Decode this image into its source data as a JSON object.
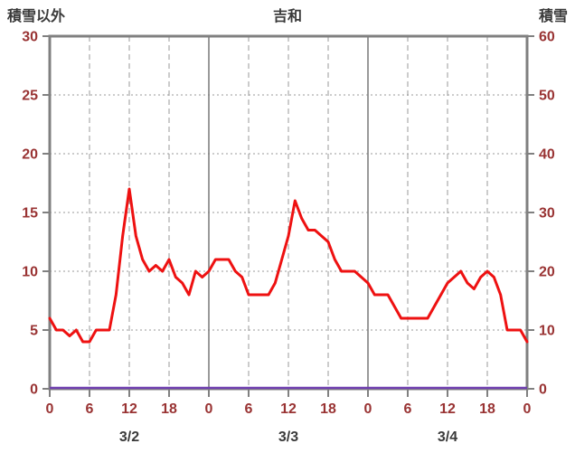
{
  "chart_data": {
    "type": "line",
    "title": "吉和",
    "left_axis": {
      "label": "積雪以外",
      "min": 0,
      "max": 30,
      "ticks": [
        0,
        5,
        10,
        15,
        20,
        25,
        30
      ]
    },
    "right_axis": {
      "label": "積雪",
      "min": 0,
      "max": 60,
      "ticks": [
        0,
        10,
        20,
        30,
        40,
        50,
        60
      ]
    },
    "x_axis": {
      "total_hours": 72,
      "hour_ticks": [
        {
          "hour": 0,
          "label": "0"
        },
        {
          "hour": 6,
          "label": "6"
        },
        {
          "hour": 12,
          "label": "12"
        },
        {
          "hour": 18,
          "label": "18"
        },
        {
          "hour": 24,
          "label": "0"
        },
        {
          "hour": 30,
          "label": "6"
        },
        {
          "hour": 36,
          "label": "12"
        },
        {
          "hour": 42,
          "label": "18"
        },
        {
          "hour": 48,
          "label": "0"
        },
        {
          "hour": 54,
          "label": "6"
        },
        {
          "hour": 60,
          "label": "12"
        },
        {
          "hour": 66,
          "label": "18"
        },
        {
          "hour": 72,
          "label": "0"
        }
      ],
      "day_boundaries": [
        24,
        48
      ],
      "date_labels": [
        {
          "hour": 12,
          "label": "3/2"
        },
        {
          "hour": 36,
          "label": "3/3"
        },
        {
          "hour": 60,
          "label": "3/4"
        }
      ]
    },
    "series": [
      {
        "name": "積雪以外",
        "axis": "left",
        "color": "#ee1111",
        "x_step_hours": 1,
        "values": [
          6,
          5,
          5,
          4.5,
          5,
          4,
          4,
          5,
          5,
          5,
          8,
          13,
          17,
          13,
          11,
          10,
          10.5,
          10,
          11,
          9.5,
          9,
          8,
          10,
          9.5,
          10,
          11,
          11,
          11,
          10,
          9.5,
          8,
          8,
          8,
          8,
          9,
          11,
          13,
          16,
          14.5,
          13.5,
          13.5,
          13,
          12.5,
          11,
          10,
          10,
          10,
          9.5,
          9,
          8,
          8,
          8,
          7,
          6,
          6,
          6,
          6,
          6,
          7,
          8,
          9,
          9.5,
          10,
          9,
          8.5,
          9.5,
          10,
          9.5,
          8,
          5,
          5,
          5,
          4
        ]
      },
      {
        "name": "積雪",
        "axis": "right",
        "color": "#7040b0",
        "constant_value": 0
      }
    ],
    "colors": {
      "frame": "#808080",
      "grid": "#9a9a9a",
      "tick_text": "#993333",
      "date_text": "#3a3a3a"
    },
    "grid": {
      "horizontal": "dotted",
      "vertical": "dashed",
      "day_lines": "solid"
    }
  }
}
